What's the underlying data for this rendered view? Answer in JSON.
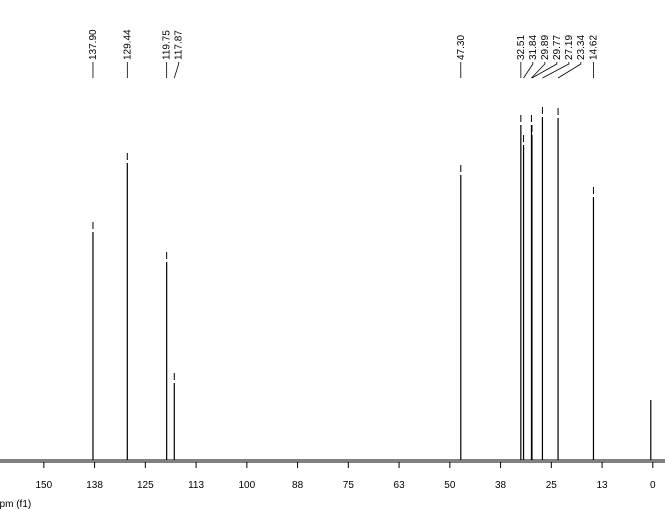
{
  "chart_data": {
    "type": "nmr",
    "x_label": "ppm (f1)",
    "peak_labels": [
      "137.90",
      "129.44",
      "119.75",
      "117.87",
      "47.30",
      "32.51",
      "31.84",
      "29.89",
      "29.77",
      "27.19",
      "23.34",
      "14.62",
      null
    ],
    "x": [
      137.9,
      129.44,
      119.75,
      117.87,
      47.3,
      32.51,
      31.84,
      29.89,
      29.77,
      27.19,
      23.34,
      14.62,
      0.5
    ],
    "values": [
      228,
      297,
      198,
      77,
      285,
      335,
      315,
      335,
      325,
      343,
      342,
      263,
      60
    ],
    "color": "#000000",
    "xlim": [
      160.8,
      -3
    ],
    "ylim": [
      0,
      350
    ],
    "xticks": [
      150,
      {
        "value": 137.5,
        "label": "138"
      },
      125,
      {
        "value": 112.5,
        "label": "113"
      },
      100,
      {
        "value": 87.5,
        "label": "88"
      },
      75,
      {
        "value": 62.5,
        "label": "63"
      },
      50,
      {
        "value": 37.5,
        "label": "38"
      },
      25,
      {
        "value": 12.5,
        "label": "13"
      },
      0
    ]
  }
}
